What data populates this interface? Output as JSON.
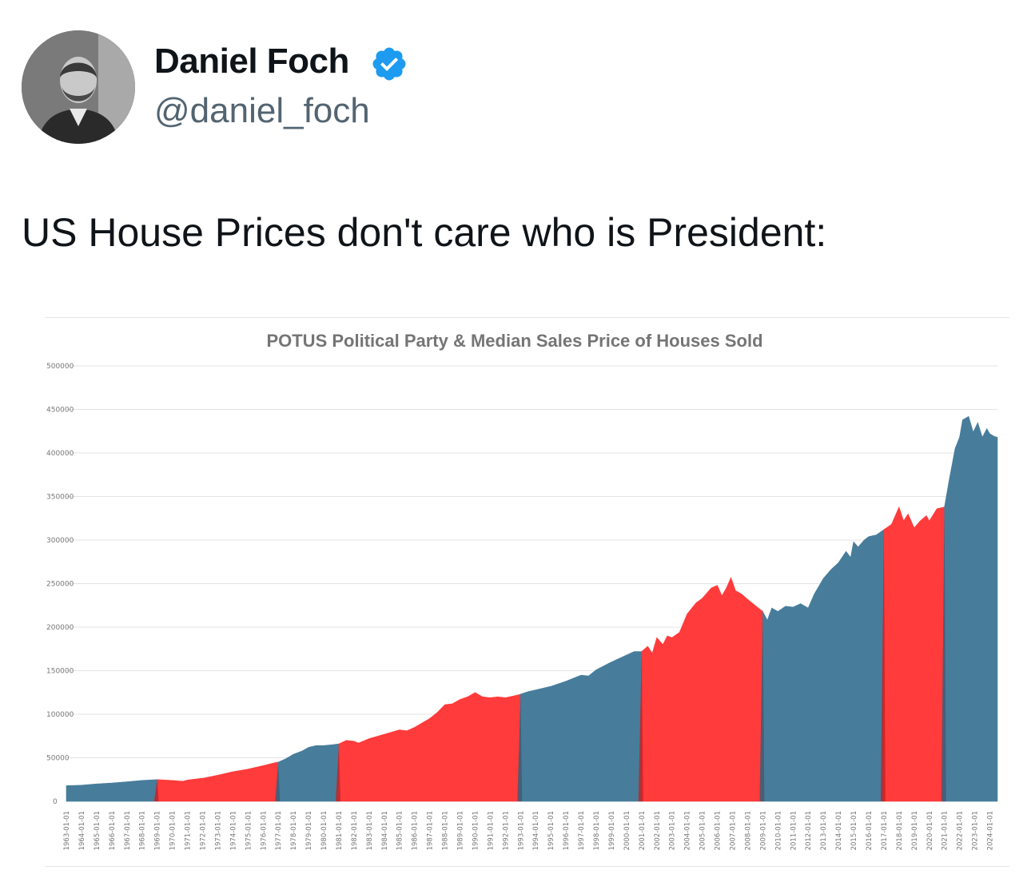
{
  "tweet": {
    "display_name": "Daniel Foch",
    "handle": "@daniel_foch",
    "verified": true,
    "verified_icon": "verified-badge-icon",
    "text": "US House Prices don't care who is President:"
  },
  "colors": {
    "republican": "#ff3b3b",
    "democrat": "#477d9b",
    "verified": "#1d9bf0"
  },
  "chart_data": {
    "type": "area",
    "title": "POTUS Political Party & Median Sales Price of Houses Sold",
    "xlabel": "",
    "ylabel": "",
    "ylim": [
      0,
      500000
    ],
    "yticks": [
      0,
      50000,
      100000,
      150000,
      200000,
      250000,
      300000,
      350000,
      400000,
      450000,
      500000
    ],
    "grid": true,
    "legend": "none",
    "x_categories": [
      "1963-01-01",
      "1964-01-01",
      "1965-01-01",
      "1966-01-01",
      "1967-01-01",
      "1968-01-01",
      "1969-01-01",
      "1970-01-01",
      "1971-01-01",
      "1972-01-01",
      "1973-01-01",
      "1974-01-01",
      "1975-01-01",
      "1976-01-01",
      "1977-01-01",
      "1978-01-01",
      "1979-01-01",
      "1980-01-01",
      "1981-01-01",
      "1982-01-01",
      "1983-01-01",
      "1984-01-01",
      "1985-01-01",
      "1986-01-01",
      "1987-01-01",
      "1988-01-01",
      "1989-01-01",
      "1990-01-01",
      "1991-01-01",
      "1992-01-01",
      "1993-01-01",
      "1994-01-01",
      "1995-01-01",
      "1996-01-01",
      "1997-01-01",
      "1998-01-01",
      "1999-01-01",
      "2000-01-01",
      "2001-01-01",
      "2002-01-01",
      "2003-01-01",
      "2004-01-01",
      "2005-01-01",
      "2006-01-01",
      "2007-01-01",
      "2008-01-01",
      "2009-01-01",
      "2010-01-01",
      "2011-01-01",
      "2012-01-01",
      "2013-01-01",
      "2014-01-01",
      "2015-01-01",
      "2016-01-01",
      "2017-01-01",
      "2018-01-01",
      "2019-01-01",
      "2020-01-01",
      "2021-01-01",
      "2022-01-01",
      "2023-01-01",
      "2024-01-01"
    ],
    "series": [
      {
        "party": "democrat",
        "points": [
          [
            1963.0,
            18000
          ],
          [
            1964.0,
            18500
          ],
          [
            1965.0,
            20000
          ],
          [
            1966.0,
            21000
          ],
          [
            1967.0,
            22500
          ],
          [
            1968.0,
            24000
          ],
          [
            1969.0,
            25000
          ]
        ]
      },
      {
        "party": "republican",
        "points": [
          [
            1969.0,
            25000
          ],
          [
            1970.0,
            24000
          ],
          [
            1970.7,
            23000
          ],
          [
            1971.0,
            24500
          ],
          [
            1972.0,
            26500
          ],
          [
            1973.0,
            30000
          ],
          [
            1974.0,
            34000
          ],
          [
            1975.0,
            37000
          ],
          [
            1976.0,
            41000
          ],
          [
            1976.9,
            45000
          ],
          [
            1977.0,
            45000
          ]
        ]
      },
      {
        "party": "democrat",
        "points": [
          [
            1977.0,
            45000
          ],
          [
            1977.5,
            49000
          ],
          [
            1978.0,
            54000
          ],
          [
            1978.6,
            58000
          ],
          [
            1979.0,
            62000
          ],
          [
            1979.5,
            64000
          ],
          [
            1980.0,
            64000
          ],
          [
            1980.6,
            65000
          ],
          [
            1981.0,
            66000
          ]
        ]
      },
      {
        "party": "republican",
        "points": [
          [
            1981.0,
            66000
          ],
          [
            1981.5,
            70000
          ],
          [
            1982.0,
            69000
          ],
          [
            1982.3,
            67000
          ],
          [
            1983.0,
            72000
          ],
          [
            1984.0,
            77000
          ],
          [
            1985.0,
            82000
          ],
          [
            1985.5,
            81000
          ],
          [
            1986.0,
            85000
          ],
          [
            1987.0,
            95000
          ],
          [
            1987.5,
            102000
          ],
          [
            1988.0,
            111000
          ],
          [
            1988.5,
            112000
          ],
          [
            1989.0,
            117000
          ],
          [
            1989.5,
            120000
          ],
          [
            1990.0,
            125000
          ],
          [
            1990.5,
            120000
          ],
          [
            1991.0,
            119000
          ],
          [
            1991.5,
            120000
          ],
          [
            1992.0,
            119000
          ],
          [
            1992.8,
            122000
          ],
          [
            1993.0,
            123000
          ]
        ]
      },
      {
        "party": "democrat",
        "points": [
          [
            1993.0,
            123000
          ],
          [
            1993.5,
            126000
          ],
          [
            1994.0,
            128000
          ],
          [
            1995.0,
            132000
          ],
          [
            1996.0,
            138000
          ],
          [
            1997.0,
            145000
          ],
          [
            1997.5,
            144000
          ],
          [
            1998.0,
            151000
          ],
          [
            1999.0,
            160000
          ],
          [
            2000.0,
            168000
          ],
          [
            2000.5,
            172000
          ],
          [
            2001.0,
            172000
          ]
        ]
      },
      {
        "party": "republican",
        "points": [
          [
            2001.0,
            172000
          ],
          [
            2001.4,
            178000
          ],
          [
            2001.7,
            170000
          ],
          [
            2002.0,
            188000
          ],
          [
            2002.4,
            180000
          ],
          [
            2002.7,
            190000
          ],
          [
            2003.0,
            188000
          ],
          [
            2003.5,
            194000
          ],
          [
            2004.0,
            215000
          ],
          [
            2004.6,
            228000
          ],
          [
            2005.0,
            233000
          ],
          [
            2005.6,
            245000
          ],
          [
            2006.0,
            248000
          ],
          [
            2006.3,
            236000
          ],
          [
            2006.6,
            245000
          ],
          [
            2006.9,
            257000
          ],
          [
            2007.2,
            242000
          ],
          [
            2007.6,
            238000
          ],
          [
            2008.0,
            232000
          ],
          [
            2008.5,
            225000
          ],
          [
            2009.0,
            218000
          ]
        ]
      },
      {
        "party": "democrat",
        "points": [
          [
            2009.0,
            218000
          ],
          [
            2009.3,
            208000
          ],
          [
            2009.6,
            222000
          ],
          [
            2010.0,
            218000
          ],
          [
            2010.5,
            224000
          ],
          [
            2011.0,
            223000
          ],
          [
            2011.5,
            227000
          ],
          [
            2012.0,
            222000
          ],
          [
            2012.4,
            238000
          ],
          [
            2013.0,
            256000
          ],
          [
            2013.5,
            266000
          ],
          [
            2014.0,
            274000
          ],
          [
            2014.5,
            287000
          ],
          [
            2014.8,
            280000
          ],
          [
            2015.0,
            298000
          ],
          [
            2015.3,
            292000
          ],
          [
            2015.7,
            300000
          ],
          [
            2016.0,
            304000
          ],
          [
            2016.5,
            306000
          ],
          [
            2017.0,
            312000
          ]
        ]
      },
      {
        "party": "republican",
        "points": [
          [
            2017.0,
            312000
          ],
          [
            2017.5,
            318000
          ],
          [
            2018.0,
            338000
          ],
          [
            2018.3,
            322000
          ],
          [
            2018.6,
            330000
          ],
          [
            2019.0,
            314000
          ],
          [
            2019.4,
            322000
          ],
          [
            2019.8,
            328000
          ],
          [
            2020.0,
            322000
          ],
          [
            2020.5,
            336000
          ],
          [
            2021.0,
            338000
          ]
        ]
      },
      {
        "party": "democrat",
        "points": [
          [
            2021.0,
            338000
          ],
          [
            2021.3,
            368000
          ],
          [
            2021.7,
            405000
          ],
          [
            2022.0,
            418000
          ],
          [
            2022.2,
            438000
          ],
          [
            2022.6,
            442000
          ],
          [
            2022.9,
            424000
          ],
          [
            2023.2,
            435000
          ],
          [
            2023.5,
            418000
          ],
          [
            2023.8,
            428000
          ],
          [
            2024.0,
            422000
          ],
          [
            2024.3,
            419000
          ],
          [
            2024.5,
            418000
          ]
        ]
      }
    ]
  }
}
